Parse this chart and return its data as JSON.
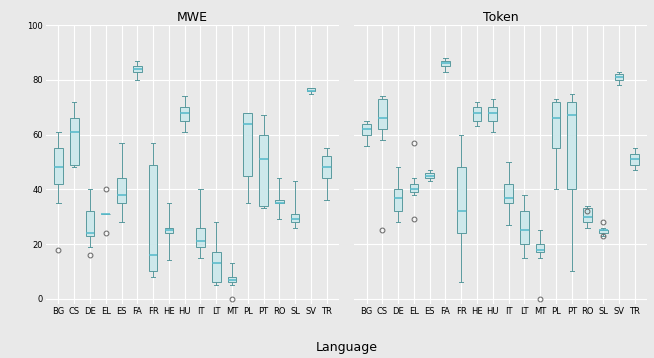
{
  "languages": [
    "BG",
    "CS",
    "DE",
    "EL",
    "ES",
    "FA",
    "FR",
    "HE",
    "HU",
    "IT",
    "LT",
    "MT",
    "PL",
    "PT",
    "RO",
    "SL",
    "SV",
    "TR"
  ],
  "mwe": {
    "BG": {
      "whislo": 35,
      "q1": 42,
      "med": 48,
      "q3": 55,
      "whishi": 61,
      "fliers": [
        18
      ]
    },
    "CS": {
      "whislo": 48,
      "q1": 49,
      "med": 61,
      "q3": 66,
      "whishi": 72,
      "fliers": []
    },
    "DE": {
      "whislo": 19,
      "q1": 23,
      "med": 24,
      "q3": 32,
      "whishi": 40,
      "fliers": [
        16
      ]
    },
    "EL": {
      "whislo": 31,
      "q1": 31,
      "med": 31,
      "q3": 31,
      "whishi": 31,
      "fliers": [
        40,
        24
      ]
    },
    "ES": {
      "whislo": 28,
      "q1": 35,
      "med": 38,
      "q3": 44,
      "whishi": 57,
      "fliers": []
    },
    "FA": {
      "whislo": 80,
      "q1": 83,
      "med": 84,
      "q3": 85,
      "whishi": 87,
      "fliers": []
    },
    "FR": {
      "whislo": 8,
      "q1": 10,
      "med": 16,
      "q3": 49,
      "whishi": 57,
      "fliers": []
    },
    "HE": {
      "whislo": 14,
      "q1": 24,
      "med": 25,
      "q3": 26,
      "whishi": 35,
      "fliers": []
    },
    "HU": {
      "whislo": 61,
      "q1": 65,
      "med": 68,
      "q3": 70,
      "whishi": 74,
      "fliers": []
    },
    "IT": {
      "whislo": 15,
      "q1": 19,
      "med": 21,
      "q3": 26,
      "whishi": 40,
      "fliers": []
    },
    "LT": {
      "whislo": 5,
      "q1": 6,
      "med": 13,
      "q3": 17,
      "whishi": 28,
      "fliers": []
    },
    "MT": {
      "whislo": 5,
      "q1": 6,
      "med": 7,
      "q3": 8,
      "whishi": 13,
      "fliers": [
        0
      ]
    },
    "PL": {
      "whislo": 35,
      "q1": 45,
      "med": 64,
      "q3": 68,
      "whishi": 68,
      "fliers": []
    },
    "PT": {
      "whislo": 33,
      "q1": 34,
      "med": 51,
      "q3": 60,
      "whishi": 67,
      "fliers": []
    },
    "RO": {
      "whislo": 29,
      "q1": 35,
      "med": 35,
      "q3": 36,
      "whishi": 44,
      "fliers": []
    },
    "SL": {
      "whislo": 26,
      "q1": 28,
      "med": 29,
      "q3": 31,
      "whishi": 43,
      "fliers": []
    },
    "SV": {
      "whislo": 75,
      "q1": 76,
      "med": 76,
      "q3": 77,
      "whishi": 77,
      "fliers": []
    },
    "TR": {
      "whislo": 36,
      "q1": 44,
      "med": 48,
      "q3": 52,
      "whishi": 55,
      "fliers": []
    }
  },
  "token": {
    "BG": {
      "whislo": 56,
      "q1": 60,
      "med": 62,
      "q3": 64,
      "whishi": 65,
      "fliers": []
    },
    "CS": {
      "whislo": 58,
      "q1": 62,
      "med": 66,
      "q3": 73,
      "whishi": 74,
      "fliers": [
        25
      ]
    },
    "DE": {
      "whislo": 28,
      "q1": 32,
      "med": 37,
      "q3": 40,
      "whishi": 48,
      "fliers": []
    },
    "EL": {
      "whislo": 38,
      "q1": 39,
      "med": 40,
      "q3": 42,
      "whishi": 44,
      "fliers": [
        57,
        29
      ]
    },
    "ES": {
      "whislo": 43,
      "q1": 44,
      "med": 45,
      "q3": 46,
      "whishi": 47,
      "fliers": []
    },
    "FA": {
      "whislo": 83,
      "q1": 85,
      "med": 86,
      "q3": 87,
      "whishi": 88,
      "fliers": []
    },
    "FR": {
      "whislo": 6,
      "q1": 24,
      "med": 32,
      "q3": 48,
      "whishi": 60,
      "fliers": []
    },
    "HE": {
      "whislo": 63,
      "q1": 65,
      "med": 68,
      "q3": 70,
      "whishi": 72,
      "fliers": []
    },
    "HU": {
      "whislo": 61,
      "q1": 65,
      "med": 68,
      "q3": 70,
      "whishi": 73,
      "fliers": []
    },
    "IT": {
      "whislo": 27,
      "q1": 35,
      "med": 37,
      "q3": 42,
      "whishi": 50,
      "fliers": []
    },
    "LT": {
      "whislo": 15,
      "q1": 20,
      "med": 25,
      "q3": 32,
      "whishi": 38,
      "fliers": []
    },
    "MT": {
      "whislo": 15,
      "q1": 17,
      "med": 18,
      "q3": 20,
      "whishi": 25,
      "fliers": [
        0
      ]
    },
    "PL": {
      "whislo": 40,
      "q1": 55,
      "med": 66,
      "q3": 72,
      "whishi": 73,
      "fliers": []
    },
    "PT": {
      "whislo": 10,
      "q1": 40,
      "med": 67,
      "q3": 72,
      "whishi": 75,
      "fliers": []
    },
    "RO": {
      "whislo": 26,
      "q1": 28,
      "med": 30,
      "q3": 33,
      "whishi": 34,
      "fliers": [
        32
      ]
    },
    "SL": {
      "whislo": 23,
      "q1": 24,
      "med": 25,
      "q3": 25,
      "whishi": 26,
      "fliers": [
        28,
        23
      ]
    },
    "SV": {
      "whislo": 78,
      "q1": 80,
      "med": 81,
      "q3": 82,
      "whishi": 83,
      "fliers": []
    },
    "TR": {
      "whislo": 47,
      "q1": 49,
      "med": 51,
      "q3": 53,
      "whishi": 55,
      "fliers": []
    }
  },
  "box_facecolor": "#cde8eb",
  "box_edgecolor": "#5a9a9e",
  "median_color": "#5bbccc",
  "flier_edgecolor": "#666666",
  "whisker_color": "#5a9a9e",
  "cap_color": "#5a9a9e",
  "bg_color": "#e9e9e9",
  "grid_color": "#ffffff",
  "ylim": [
    -2,
    100
  ],
  "yticks": [
    0,
    20,
    40,
    60,
    80,
    100
  ],
  "title_mwe": "MWE",
  "title_token": "Token",
  "xlabel": "Language",
  "title_fontsize": 9,
  "tick_fontsize": 6,
  "xlabel_fontsize": 9
}
